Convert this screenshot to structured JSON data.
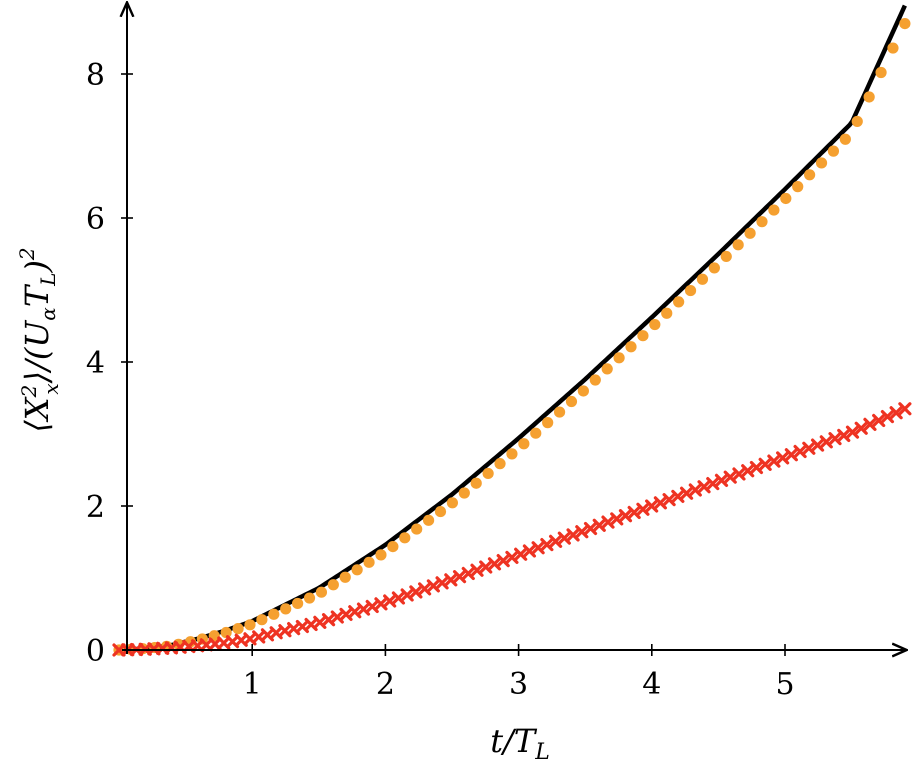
{
  "chart_data": {
    "type": "line",
    "xlabel": "t/T_L",
    "ylabel": "⟨X_x^2⟩/(U_α T_L)^2",
    "xlim": [
      0,
      5.9
    ],
    "ylim": [
      0,
      8.9
    ],
    "x_ticks": [
      "1",
      "2",
      "3",
      "4",
      "5"
    ],
    "y_ticks": [
      "0",
      "2",
      "4",
      "6",
      "8"
    ],
    "x_tick_values": [
      1,
      2,
      3,
      4,
      5
    ],
    "y_tick_values": [
      0,
      2,
      4,
      6,
      8
    ],
    "grid": false,
    "legend": "none",
    "series": [
      {
        "style": "solid line",
        "color": "#000000",
        "x": [
          0,
          0.2,
          0.4,
          0.6,
          0.8,
          1.0,
          1.5,
          2.0,
          2.5,
          3.0,
          3.5,
          4.0,
          4.5,
          5.0,
          5.5,
          5.9
        ],
        "y": [
          0,
          0.02,
          0.07,
          0.16,
          0.27,
          0.4,
          0.86,
          1.46,
          2.16,
          2.94,
          3.76,
          4.62,
          5.5,
          6.4,
          7.32,
          8.95
        ]
      },
      {
        "style": "dots",
        "color": "#f5a030",
        "x": [
          0,
          0.2,
          0.4,
          0.6,
          0.8,
          1.0,
          1.5,
          2.0,
          2.5,
          3.0,
          3.5,
          4.0,
          4.5,
          5.0,
          5.5,
          5.9
        ],
        "y": [
          0,
          0.02,
          0.06,
          0.14,
          0.24,
          0.36,
          0.78,
          1.36,
          2.04,
          2.8,
          3.62,
          4.48,
          5.36,
          6.26,
          7.18,
          8.7
        ]
      },
      {
        "style": "x-markers",
        "color": "#ee3322",
        "x": [
          0,
          0.2,
          0.4,
          0.6,
          0.8,
          1.0,
          1.5,
          2.0,
          2.5,
          3.0,
          3.5,
          4.0,
          4.5,
          5.0,
          5.5,
          5.9
        ],
        "y": [
          0,
          0.01,
          0.03,
          0.06,
          0.1,
          0.16,
          0.38,
          0.66,
          0.98,
          1.32,
          1.66,
          2.0,
          2.34,
          2.68,
          3.02,
          3.35
        ]
      }
    ]
  }
}
